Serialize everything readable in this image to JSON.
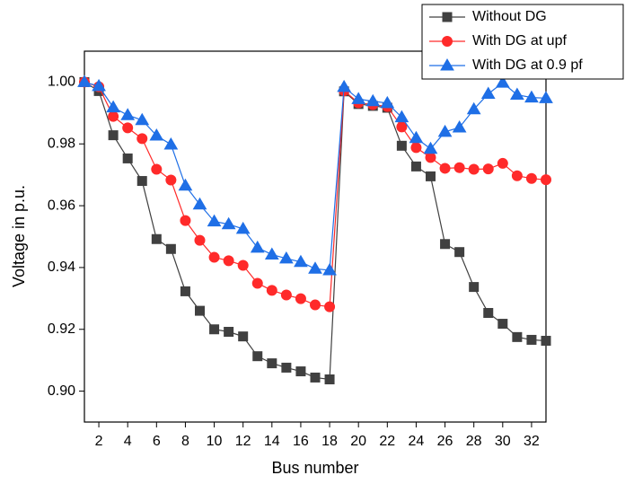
{
  "chart_data": {
    "type": "line",
    "x_label": "Bus number",
    "y_label": "Voltage in p.u.",
    "x": [
      1,
      2,
      3,
      4,
      5,
      6,
      7,
      8,
      9,
      10,
      11,
      12,
      13,
      14,
      15,
      16,
      17,
      18,
      19,
      20,
      21,
      22,
      23,
      24,
      25,
      26,
      27,
      28,
      29,
      30,
      31,
      32,
      33
    ],
    "series": [
      {
        "name": "Without DG",
        "color": "#404040",
        "marker": "square",
        "values": [
          1.0,
          0.9971,
          0.9828,
          0.9753,
          0.968,
          0.9492,
          0.946,
          0.9323,
          0.926,
          0.92,
          0.9192,
          0.9177,
          0.9113,
          0.909,
          0.9076,
          0.9064,
          0.9044,
          0.9038,
          0.997,
          0.9929,
          0.9923,
          0.9917,
          0.9794,
          0.9727,
          0.9695,
          0.9476,
          0.945,
          0.9337,
          0.9253,
          0.9218,
          0.9175,
          0.9166,
          0.9163
        ]
      },
      {
        "name": "With DG at upf",
        "color": "#ff2a2a",
        "marker": "circle",
        "values": [
          1.0,
          0.9985,
          0.9889,
          0.9852,
          0.9817,
          0.9718,
          0.9683,
          0.9552,
          0.9488,
          0.9433,
          0.9422,
          0.9407,
          0.9349,
          0.9326,
          0.9311,
          0.9299,
          0.9279,
          0.9273,
          0.9972,
          0.9933,
          0.9927,
          0.9921,
          0.9855,
          0.9788,
          0.9756,
          0.9721,
          0.9723,
          0.9718,
          0.9719,
          0.9737,
          0.9697,
          0.9688,
          0.9684
        ]
      },
      {
        "name": "With DG at 0.9 pf",
        "color": "#1f6fe6",
        "marker": "triangle",
        "values": [
          1.0,
          0.9987,
          0.9918,
          0.9893,
          0.9877,
          0.9827,
          0.9798,
          0.9665,
          0.9604,
          0.9549,
          0.954,
          0.9525,
          0.9464,
          0.9442,
          0.9429,
          0.9418,
          0.9396,
          0.9391,
          0.9984,
          0.9945,
          0.9938,
          0.9932,
          0.9886,
          0.9819,
          0.9784,
          0.9839,
          0.9853,
          0.9912,
          0.9962,
          0.9998,
          0.9959,
          0.995,
          0.9948
        ]
      }
    ],
    "xlim": [
      1,
      33
    ],
    "xticks": [
      2,
      4,
      6,
      8,
      10,
      12,
      14,
      16,
      18,
      20,
      22,
      24,
      26,
      28,
      30,
      32
    ],
    "ylim": [
      0.89,
      1.01
    ],
    "yticks": [
      {
        "value": 0.9,
        "label": "0.90"
      },
      0.92,
      0.94,
      0.96,
      0.98,
      {
        "value": 1,
        "label": "1.00"
      }
    ],
    "legend": "top-right"
  }
}
